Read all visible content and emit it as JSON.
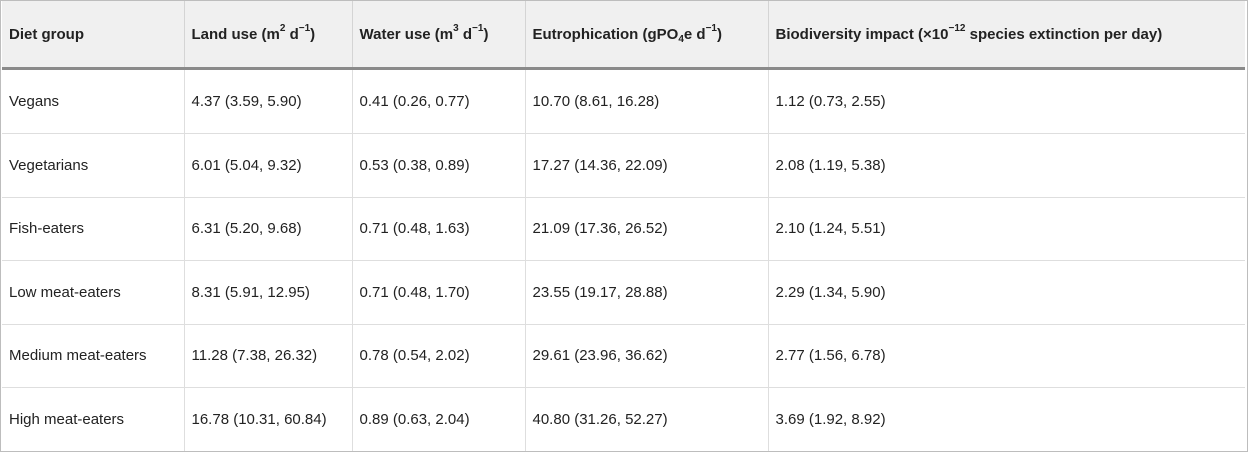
{
  "table": {
    "headers": {
      "diet_group": "Diet group",
      "land_use": {
        "pre": "Land use (m",
        "sup1": "2",
        "mid": " d",
        "sup2": "−1",
        "post": ")"
      },
      "water_use": {
        "pre": "Water use (m",
        "sup1": "3",
        "mid": " d",
        "sup2": "−1",
        "post": ")"
      },
      "eutrophication": {
        "pre": "Eutrophication (gPO",
        "sub": "4",
        "mid": "e d",
        "sup": "−1",
        "post": ")"
      },
      "biodiversity": {
        "pre": "Biodiversity impact (×10",
        "sup": "−12",
        "post": " species extinction per day)"
      }
    },
    "rows": [
      {
        "diet": "Vegans",
        "land": "4.37 (3.59, 5.90)",
        "water": "0.41 (0.26, 0.77)",
        "eutro": "10.70 (8.61, 16.28)",
        "bio": "1.12 (0.73, 2.55)"
      },
      {
        "diet": "Vegetarians",
        "land": "6.01 (5.04, 9.32)",
        "water": "0.53 (0.38, 0.89)",
        "eutro": "17.27 (14.36, 22.09)",
        "bio": "2.08 (1.19, 5.38)"
      },
      {
        "diet": "Fish-eaters",
        "land": "6.31 (5.20, 9.68)",
        "water": "0.71 (0.48, 1.63)",
        "eutro": "21.09 (17.36, 26.52)",
        "bio": "2.10 (1.24, 5.51)"
      },
      {
        "diet": "Low meat-eaters",
        "land": "8.31 (5.91, 12.95)",
        "water": "0.71 (0.48, 1.70)",
        "eutro": "23.55 (19.17, 28.88)",
        "bio": "2.29 (1.34, 5.90)"
      },
      {
        "diet": "Medium meat-eaters",
        "land": "11.28 (7.38, 26.32)",
        "water": "0.78 (0.54, 2.02)",
        "eutro": "29.61 (23.96, 36.62)",
        "bio": "2.77 (1.56, 6.78)"
      },
      {
        "diet": "High meat-eaters",
        "land": "16.78 (10.31, 60.84)",
        "water": "0.89 (0.63, 2.04)",
        "eutro": "40.80 (31.26, 52.27)",
        "bio": "3.69 (1.92, 8.92)"
      }
    ]
  }
}
